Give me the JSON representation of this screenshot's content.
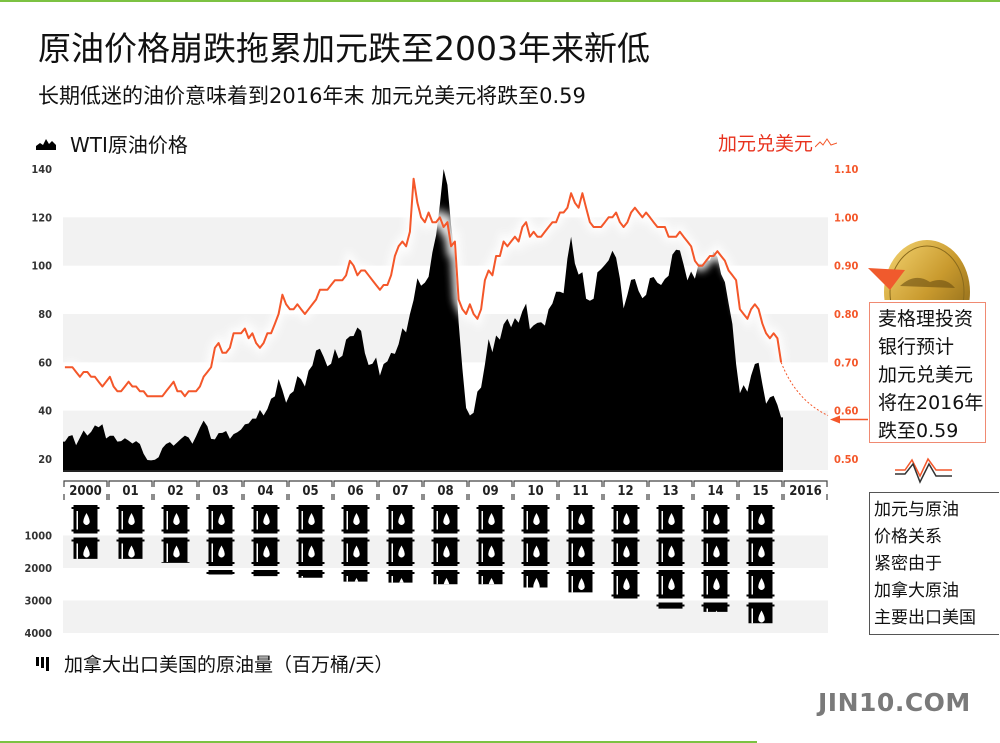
{
  "title": "原油价格崩跌拖累加元跌至2003年来新低",
  "subtitle": "长期低迷的油价意味着到2016年末 加元兑美元将跌至0.59",
  "legend": {
    "oil": "WTI原油价格",
    "cad": "加元兑美元",
    "exports": "加拿大出口美国的原油量（百万桶/天）"
  },
  "notes": {
    "forecast": [
      "麦格理投资",
      "银行预计",
      "加元兑美元",
      "将在2016年",
      "跌至0.59"
    ],
    "relation": [
      "加元与原油",
      "价格关系",
      "紧密由于",
      "加拿大原油",
      "主要出口美国"
    ]
  },
  "brand": "JIN10.COM",
  "colors": {
    "oil": "#000000",
    "cad": "#f4572a",
    "band": "#f2f2f2",
    "accent_green": "#7cc242",
    "title_red": "#e8321e"
  },
  "chart_data": [
    {
      "type": "area+line",
      "x_categories": [
        "2000",
        "01",
        "02",
        "03",
        "04",
        "05",
        "06",
        "07",
        "08",
        "09",
        "10",
        "11",
        "12",
        "13",
        "14",
        "15",
        "2016"
      ],
      "left_axis": {
        "ticks": [
          "20",
          "40",
          "60",
          "80",
          "100",
          "120",
          "140"
        ],
        "range": [
          20,
          140
        ]
      },
      "right_axis": {
        "ticks": [
          "0.50",
          "0.60",
          "0.70",
          "0.80",
          "0.90",
          "1.00",
          "1.10"
        ],
        "range": [
          0.5,
          1.1
        ]
      },
      "series": [
        {
          "name": "WTI原油价格",
          "type": "area",
          "axis": "left",
          "frequency": "monthly",
          "start": "2000-01",
          "values": [
            27.2,
            29.4,
            29.9,
            25.7,
            28.8,
            31.8,
            29.7,
            31.2,
            33.9,
            33.1,
            34.4,
            28.5,
            29.6,
            29.6,
            27.2,
            27.4,
            28.6,
            27.6,
            26.4,
            27.4,
            26.2,
            22.2,
            19.6,
            19.4,
            19.7,
            20.7,
            24.5,
            26.2,
            27.0,
            25.5,
            26.9,
            28.4,
            29.7,
            28.9,
            26.3,
            29.4,
            32.9,
            35.9,
            33.5,
            28.3,
            28.1,
            30.7,
            30.8,
            31.6,
            28.3,
            30.3,
            31.1,
            32.2,
            34.3,
            34.7,
            36.7,
            36.7,
            40.3,
            38.0,
            40.7,
            44.9,
            45.9,
            53.1,
            48.5,
            43.3,
            46.8,
            48.0,
            54.3,
            53.0,
            50.0,
            56.5,
            58.7,
            64.9,
            65.6,
            62.3,
            58.3,
            59.4,
            65.5,
            61.6,
            62.7,
            69.4,
            70.8,
            70.9,
            74.4,
            73.0,
            63.8,
            58.9,
            59.4,
            62.0,
            54.5,
            59.3,
            60.4,
            63.9,
            63.5,
            67.5,
            74.1,
            72.4,
            79.9,
            85.8,
            94.8,
            91.7,
            93.0,
            95.4,
            105.5,
            112.6,
            125.4,
            140.0,
            133.4,
            116.7,
            104.1,
            76.6,
            57.3,
            41.1,
            38.0,
            39.1,
            47.9,
            49.6,
            59.0,
            69.6,
            64.2,
            71.1,
            69.4,
            75.7,
            78.0,
            74.5,
            78.3,
            76.4,
            81.2,
            84.3,
            73.7,
            75.3,
            76.3,
            76.6,
            75.2,
            81.9,
            84.3,
            89.2,
            89.2,
            88.6,
            102.9,
            112.0,
            100.9,
            96.3,
            97.3,
            86.3,
            85.5,
            86.3,
            97.2,
            98.6,
            100.3,
            102.2,
            106.2,
            103.3,
            94.7,
            82.3,
            87.9,
            94.1,
            94.5,
            89.5,
            86.5,
            87.9,
            94.8,
            95.3,
            92.9,
            92.0,
            94.5,
            95.8,
            104.6,
            106.6,
            106.3,
            100.5,
            93.9,
            97.6,
            94.6,
            100.8,
            100.8,
            102.1,
            102.2,
            105.8,
            103.6,
            96.5,
            93.2,
            84.4,
            75.8,
            59.3,
            47.2,
            50.6,
            47.8,
            54.5,
            59.3,
            59.8,
            50.9,
            42.9,
            45.5,
            46.2,
            42.4,
            37.2
          ]
        },
        {
          "name": "加元兑美元",
          "type": "line",
          "axis": "right",
          "frequency": "monthly",
          "start": "2000-01",
          "values": [
            0.69,
            0.69,
            0.69,
            0.68,
            0.67,
            0.68,
            0.68,
            0.67,
            0.67,
            0.66,
            0.65,
            0.66,
            0.67,
            0.65,
            0.64,
            0.64,
            0.65,
            0.66,
            0.65,
            0.65,
            0.64,
            0.64,
            0.63,
            0.63,
            0.63,
            0.63,
            0.63,
            0.64,
            0.65,
            0.66,
            0.64,
            0.64,
            0.63,
            0.64,
            0.64,
            0.64,
            0.65,
            0.67,
            0.68,
            0.69,
            0.73,
            0.74,
            0.72,
            0.72,
            0.73,
            0.76,
            0.76,
            0.76,
            0.77,
            0.75,
            0.76,
            0.74,
            0.73,
            0.74,
            0.76,
            0.76,
            0.78,
            0.8,
            0.84,
            0.82,
            0.81,
            0.81,
            0.82,
            0.81,
            0.8,
            0.81,
            0.82,
            0.83,
            0.85,
            0.85,
            0.85,
            0.86,
            0.87,
            0.87,
            0.87,
            0.88,
            0.91,
            0.9,
            0.88,
            0.89,
            0.89,
            0.88,
            0.87,
            0.86,
            0.85,
            0.86,
            0.86,
            0.88,
            0.92,
            0.94,
            0.95,
            0.94,
            0.97,
            1.08,
            1.03,
            1.0,
            0.99,
            1.01,
            0.99,
            0.99,
            1.0,
            0.98,
            0.99,
            0.94,
            0.95,
            0.83,
            0.81,
            0.8,
            0.82,
            0.8,
            0.79,
            0.81,
            0.87,
            0.89,
            0.88,
            0.92,
            0.92,
            0.95,
            0.94,
            0.95,
            0.96,
            0.95,
            0.98,
            0.99,
            0.96,
            0.97,
            0.96,
            0.96,
            0.97,
            0.98,
            0.99,
            0.99,
            1.01,
            1.01,
            1.02,
            1.05,
            1.03,
            1.02,
            1.05,
            1.02,
            0.99,
            0.98,
            0.98,
            0.98,
            0.99,
            1.0,
            1.0,
            1.01,
            0.99,
            0.98,
            0.99,
            1.01,
            1.02,
            1.01,
            1.0,
            1.01,
            1.0,
            0.99,
            0.98,
            0.98,
            0.98,
            0.96,
            0.96,
            0.96,
            0.97,
            0.96,
            0.95,
            0.94,
            0.91,
            0.9,
            0.9,
            0.91,
            0.92,
            0.92,
            0.93,
            0.92,
            0.91,
            0.89,
            0.88,
            0.87,
            0.81,
            0.8,
            0.79,
            0.81,
            0.82,
            0.81,
            0.78,
            0.76,
            0.75,
            0.76,
            0.75,
            0.7
          ]
        },
        {
          "name": "forecast",
          "type": "dotted-line",
          "axis": "right",
          "from": {
            "x": "2015-12",
            "y": 0.7
          },
          "to": {
            "x": "2016-12",
            "y": 0.59
          }
        }
      ]
    },
    {
      "type": "bar",
      "categories": [
        "2000",
        "01",
        "02",
        "03",
        "04",
        "05",
        "06",
        "07",
        "08",
        "09",
        "10",
        "11",
        "12",
        "13",
        "14",
        "15"
      ],
      "values": [
        1720,
        1720,
        1840,
        2200,
        2250,
        2300,
        2420,
        2450,
        2500,
        2500,
        2600,
        2750,
        2950,
        3250,
        3350,
        3700
      ],
      "axis": {
        "ticks": [
          "1000",
          "2000",
          "3000",
          "4000"
        ],
        "range": [
          0,
          4000
        ],
        "inverted": true
      },
      "mark": "barrel-icon"
    }
  ]
}
